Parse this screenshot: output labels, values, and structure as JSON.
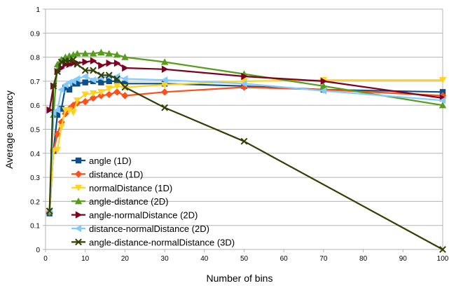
{
  "chart_data": {
    "type": "line",
    "xlabel": "Number of bins",
    "ylabel": "Average accuracy",
    "xlim": [
      0,
      100
    ],
    "ylim": [
      0,
      1
    ],
    "xticks": [
      0,
      10,
      20,
      30,
      40,
      50,
      60,
      70,
      80,
      90,
      100
    ],
    "yticks": [
      0,
      0.1,
      0.2,
      0.3,
      0.4,
      0.5,
      0.6,
      0.7,
      0.8,
      0.9,
      1
    ],
    "grid": "horizontal",
    "legend_position": "bottom-left",
    "series": [
      {
        "name": "angle (1D)",
        "color": "#0b4f8a",
        "marker": "square",
        "x": [
          1,
          2,
          3,
          4,
          5,
          6,
          7,
          8,
          10,
          12,
          14,
          16,
          18,
          20,
          30,
          50,
          70,
          100
        ],
        "y": [
          0.15,
          0.41,
          0.56,
          0.585,
          0.675,
          0.665,
          0.69,
          0.69,
          0.695,
          0.7,
          0.695,
          0.7,
          0.7,
          0.69,
          0.69,
          0.68,
          0.665,
          0.655
        ]
      },
      {
        "name": "distance (1D)",
        "color": "#ff4f1a",
        "marker": "diamond",
        "x": [
          1,
          2,
          3,
          4,
          5,
          6,
          7,
          8,
          10,
          12,
          14,
          16,
          18,
          20,
          30,
          50,
          70,
          100
        ],
        "y": [
          0.155,
          0.41,
          0.48,
          0.53,
          0.565,
          0.585,
          0.6,
          0.61,
          0.615,
          0.63,
          0.64,
          0.645,
          0.655,
          0.64,
          0.655,
          0.675,
          0.665,
          0.64
        ]
      },
      {
        "name": "normalDistance (1D)",
        "color": "#ffd320",
        "marker": "triangle-down",
        "x": [
          1,
          2,
          3,
          4,
          5,
          6,
          7,
          8,
          10,
          12,
          14,
          16,
          18,
          20,
          30,
          50,
          70,
          100
        ],
        "y": [
          0.16,
          0.41,
          0.415,
          0.51,
          0.58,
          0.58,
          0.57,
          0.62,
          0.645,
          0.65,
          0.655,
          0.67,
          0.68,
          0.675,
          0.685,
          0.7,
          0.705,
          0.705
        ]
      },
      {
        "name": "angle-distance (2D)",
        "color": "#579d1c",
        "marker": "triangle-up",
        "x": [
          1,
          2,
          3,
          4,
          5,
          6,
          7,
          8,
          10,
          12,
          14,
          16,
          18,
          20,
          30,
          50,
          70,
          100
        ],
        "y": [
          0.16,
          0.56,
          0.77,
          0.79,
          0.8,
          0.805,
          0.81,
          0.815,
          0.815,
          0.815,
          0.82,
          0.815,
          0.81,
          0.8,
          0.78,
          0.73,
          0.68,
          0.6
        ]
      },
      {
        "name": "angle-normalDistance (2D)",
        "color": "#7e0021",
        "marker": "triangle-right",
        "x": [
          1,
          2,
          3,
          4,
          5,
          6,
          7,
          8,
          10,
          12,
          14,
          16,
          18,
          20,
          30,
          50,
          70,
          100
        ],
        "y": [
          0.58,
          0.68,
          0.74,
          0.755,
          0.77,
          0.77,
          0.775,
          0.775,
          0.78,
          0.785,
          0.765,
          0.775,
          0.775,
          0.755,
          0.75,
          0.72,
          0.7,
          0.63
        ]
      },
      {
        "name": "distance-normalDistance (2D)",
        "color": "#83caff",
        "marker": "triangle-left",
        "x": [
          1,
          2,
          3,
          4,
          5,
          6,
          7,
          8,
          10,
          12,
          14,
          16,
          18,
          20,
          30,
          50,
          70,
          100
        ],
        "y": [
          0.16,
          0.57,
          0.58,
          0.665,
          0.685,
          0.695,
          0.7,
          0.71,
          0.72,
          0.705,
          0.715,
          0.72,
          0.72,
          0.71,
          0.705,
          0.69,
          0.66,
          0.62
        ]
      },
      {
        "name": "angle-distance-normalDistance (3D)",
        "color": "#314004",
        "marker": "x",
        "x": [
          1,
          2,
          3,
          4,
          5,
          6,
          7,
          8,
          10,
          12,
          14,
          16,
          18,
          20,
          30,
          50,
          100
        ],
        "y": [
          0.16,
          0.68,
          0.74,
          0.78,
          0.785,
          0.785,
          0.79,
          0.77,
          0.745,
          0.745,
          0.725,
          0.725,
          0.71,
          0.675,
          0.59,
          0.45,
          0.0
        ]
      }
    ]
  }
}
